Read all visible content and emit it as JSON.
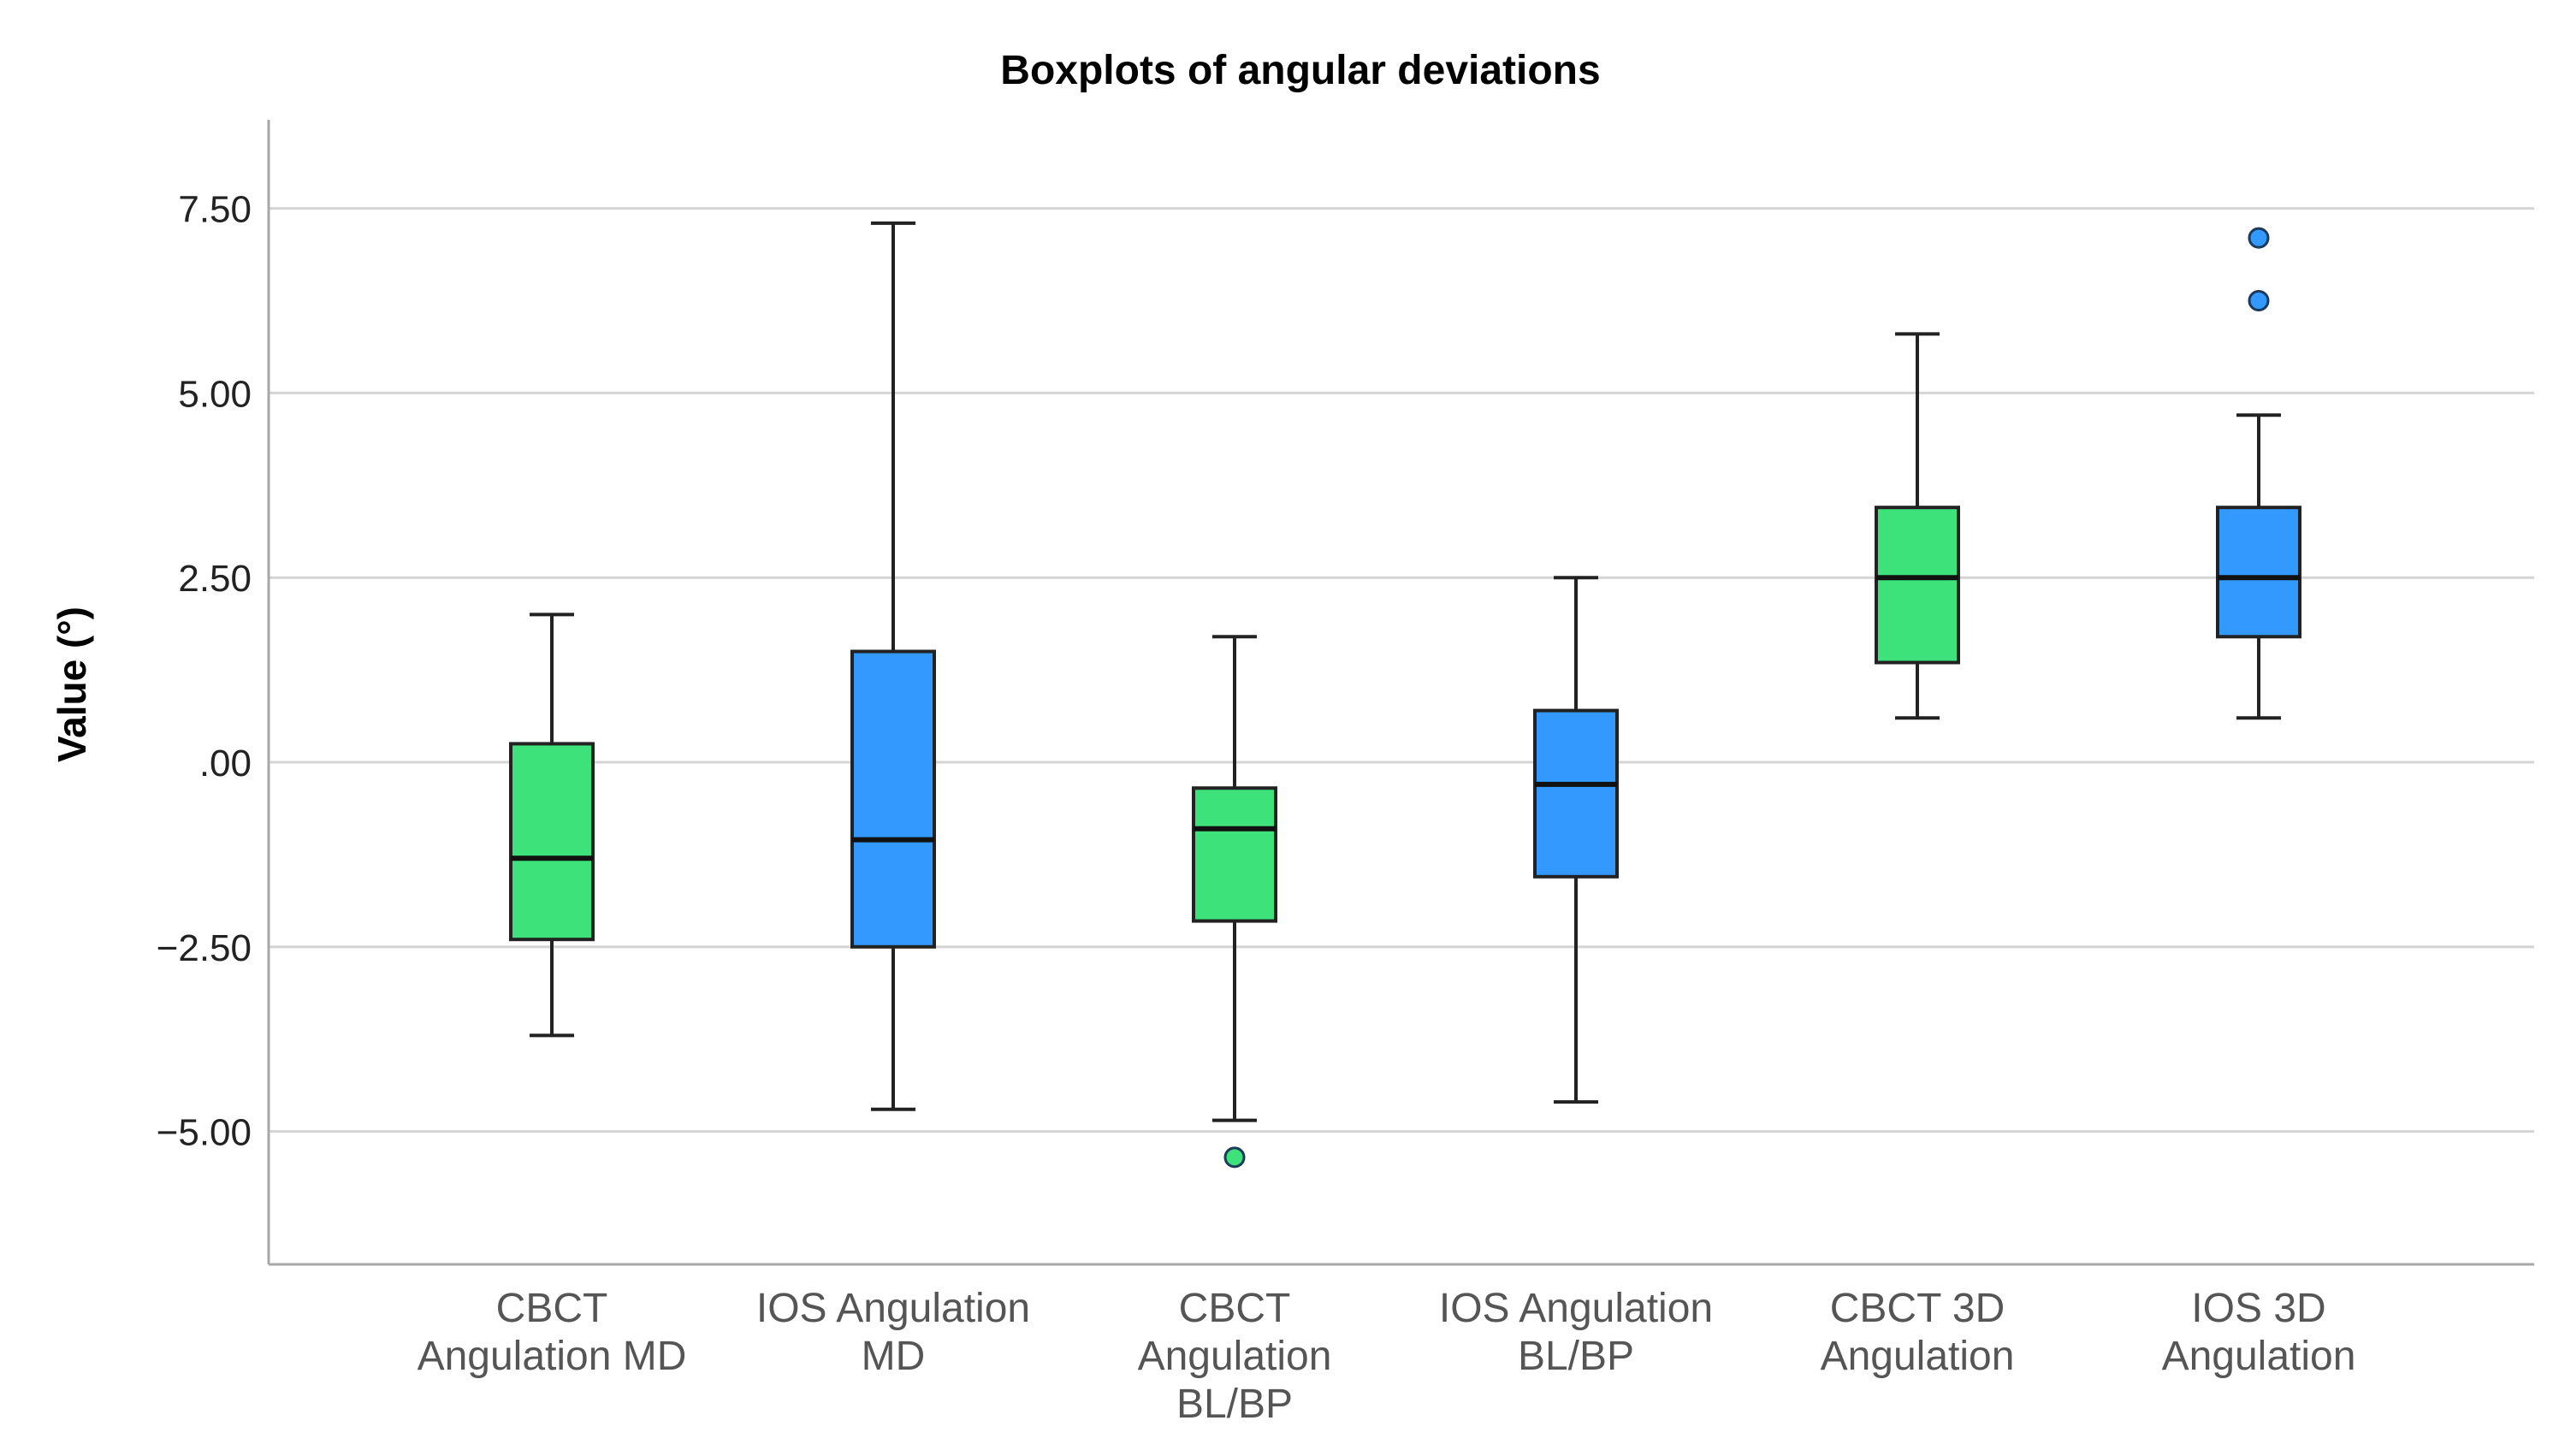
{
  "chart_data": {
    "type": "boxplot",
    "title": "Boxplots of angular deviations",
    "xlabel": "",
    "ylabel": "Value (°)",
    "ylim": [
      -6.8,
      8.7
    ],
    "yticks": [
      7.5,
      5.0,
      2.5,
      0.0,
      -2.5,
      -5.0
    ],
    "ytick_labels": [
      "7.50",
      "5.00",
      "2.50",
      ".00",
      "−2.50",
      "−5.00"
    ],
    "grid": true,
    "categories": [
      {
        "label": [
          "CBCT",
          "Angulation MD"
        ],
        "color": "#3ee27a",
        "min": -3.7,
        "q1": -2.4,
        "median": -1.3,
        "q3": 0.25,
        "max": 2.0,
        "outliers": []
      },
      {
        "label": [
          "IOS Angulation",
          "MD"
        ],
        "color": "#3399ff",
        "min": -4.7,
        "q1": -2.5,
        "median": -1.05,
        "q3": 1.5,
        "max": 7.3,
        "outliers": []
      },
      {
        "label": [
          "CBCT",
          "Angulation",
          "BL/BP"
        ],
        "color": "#3ee27a",
        "min": -4.85,
        "q1": -2.15,
        "median": -0.9,
        "q3": -0.35,
        "max": 1.7,
        "outliers": [
          -5.35
        ]
      },
      {
        "label": [
          "IOS Angulation",
          "BL/BP"
        ],
        "color": "#3399ff",
        "min": -4.6,
        "q1": -1.55,
        "median": -0.3,
        "q3": 0.7,
        "max": 2.5,
        "outliers": []
      },
      {
        "label": [
          "CBCT 3D",
          "Angulation"
        ],
        "color": "#3ee27a",
        "min": 0.6,
        "q1": 1.35,
        "median": 2.5,
        "q3": 3.45,
        "max": 5.8,
        "outliers": []
      },
      {
        "label": [
          "IOS 3D",
          "Angulation"
        ],
        "color": "#3399ff",
        "min": 0.6,
        "q1": 1.7,
        "median": 2.5,
        "q3": 3.45,
        "max": 4.7,
        "outliers": [
          6.25,
          7.1
        ]
      }
    ]
  }
}
